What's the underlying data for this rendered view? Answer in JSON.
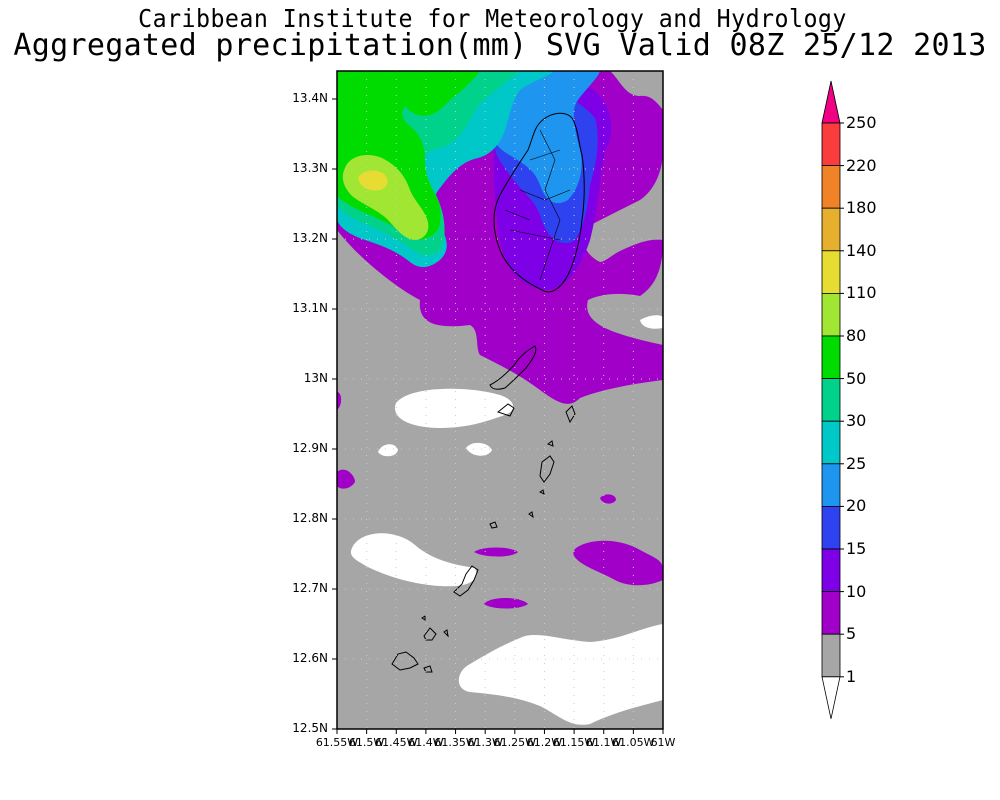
{
  "header": {
    "title": "Caribbean Institute for Meteorology and Hydrology",
    "subtitle": "Aggregated precipitation(mm) SVG Valid 08Z 25/12 2013"
  },
  "map": {
    "lat_ticks": [
      "13.4N",
      "13.3N",
      "13.2N",
      "13.1N",
      "13N",
      "12.9N",
      "12.8N",
      "12.7N",
      "12.6N",
      "12.5N"
    ],
    "lon_ticks": [
      "61.55W",
      "61.5W",
      "61.45W",
      "61.4W",
      "61.35W",
      "61.3W",
      "61.25W",
      "61.2W",
      "61.15W",
      "61.1W",
      "61.05W",
      "61W"
    ],
    "lat_range": [
      12.5,
      13.44
    ],
    "lon_range": [
      -61.55,
      -61.0
    ]
  },
  "legend": {
    "levels": [
      "1",
      "5",
      "10",
      "15",
      "20",
      "25",
      "30",
      "50",
      "80",
      "110",
      "140",
      "180",
      "220",
      "250"
    ],
    "colors": [
      "#a6a6a6",
      "#a000c8",
      "#7d00e6",
      "#2f42f0",
      "#1e96f0",
      "#00c8c8",
      "#00d28c",
      "#00dc00",
      "#a0e632",
      "#e6dc32",
      "#e6af2d",
      "#f08228",
      "#fa3c3c",
      "#f00082"
    ],
    "below_color": "#ffffff"
  }
}
